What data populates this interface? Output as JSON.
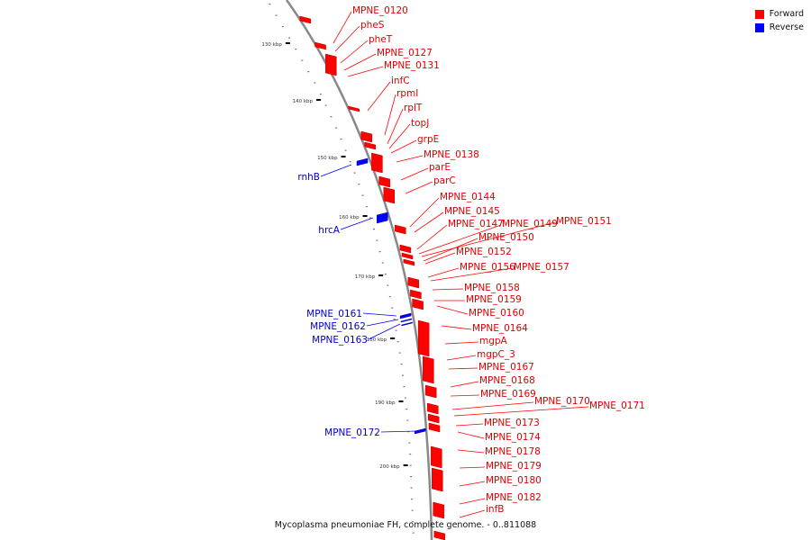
{
  "caption": "Mycoplasma pneumoniae FH, complete genome. - 0..811088",
  "colors": {
    "forward": "#ff0000",
    "reverse": "#0000ff",
    "backbone": "#888888",
    "tick": "#000000"
  },
  "legend": [
    {
      "label": "Forward",
      "color": "#ff0000"
    },
    {
      "label": "Reverse",
      "color": "#0000ff"
    }
  ],
  "ticks": [
    {
      "label": "130 kbp"
    },
    {
      "label": "140 kbp"
    },
    {
      "label": "150 kbp"
    },
    {
      "label": "160 kbp"
    },
    {
      "label": "170 kbp"
    },
    {
      "label": "180 kbp"
    },
    {
      "label": "190 kbp"
    },
    {
      "label": "200 kbp"
    }
  ],
  "forward_genes": [
    "MPNE_0120",
    "pheS",
    "pheT",
    "MPNE_0127",
    "MPNE_0131",
    "infC",
    "rpmI",
    "rplT",
    "topJ",
    "grpE",
    "MPNE_0138",
    "parE",
    "parC",
    "MPNE_0144",
    "MPNE_0145",
    "MPNE_0147",
    "MPNE_0149",
    "MPNE_0151",
    "MPNE_0150",
    "MPNE_0152",
    "MPNE_0156",
    "MPNE_0157",
    "MPNE_0158",
    "MPNE_0159",
    "MPNE_0160",
    "MPNE_0164",
    "mgpA",
    "mgpC_3",
    "MPNE_0167",
    "MPNE_0168",
    "MPNE_0169",
    "MPNE_0170",
    "MPNE_0171",
    "MPNE_0173",
    "MPNE_0174",
    "MPNE_0178",
    "MPNE_0179",
    "MPNE_0180",
    "MPNE_0182",
    "infB"
  ],
  "reverse_genes": [
    "rnhB",
    "hrcA",
    "MPNE_0161",
    "MPNE_0162",
    "MPNE_0163",
    "MPNE_0172"
  ]
}
